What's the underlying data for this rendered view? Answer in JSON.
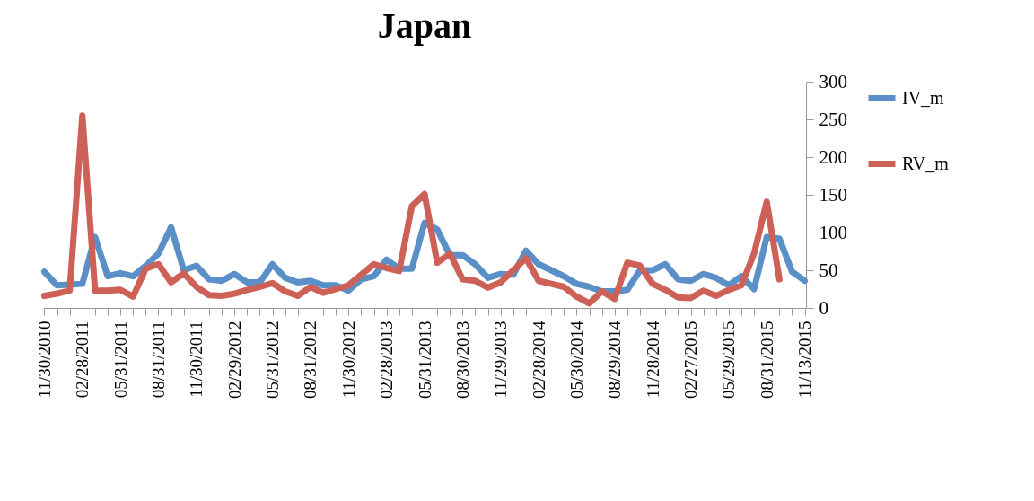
{
  "chart_data": {
    "type": "line",
    "title": "Japan",
    "categories": [
      "11/30/2010",
      null,
      null,
      "02/28/2011",
      null,
      null,
      "05/31/2011",
      null,
      null,
      "08/31/2011",
      null,
      null,
      "11/30/2011",
      null,
      null,
      "02/29/2012",
      null,
      null,
      "05/31/2012",
      null,
      null,
      "08/31/2012",
      null,
      null,
      "11/30/2012",
      null,
      null,
      "02/28/2013",
      null,
      null,
      "05/31/2013",
      null,
      null,
      "08/30/2013",
      null,
      null,
      "11/29/2013",
      null,
      null,
      "02/28/2014",
      null,
      null,
      "05/30/2014",
      null,
      null,
      "08/29/2014",
      null,
      null,
      "11/28/2014",
      null,
      null,
      "02/27/2015",
      null,
      null,
      "05/29/2015",
      null,
      null,
      "08/31/2015",
      null,
      null,
      "11/13/2015"
    ],
    "series": [
      {
        "name": "IV_m",
        "color": "#5b8fc7",
        "values": [
          48,
          30,
          31,
          32,
          94,
          42,
          46,
          42,
          56,
          72,
          107,
          50,
          56,
          38,
          36,
          45,
          34,
          34,
          58,
          40,
          34,
          36,
          30,
          30,
          23,
          38,
          42,
          64,
          52,
          52,
          113,
          104,
          70,
          70,
          58,
          40,
          45,
          44,
          76,
          58,
          50,
          42,
          32,
          28,
          22,
          22,
          24,
          50,
          50,
          58,
          38,
          36,
          45,
          40,
          30,
          42,
          25,
          94,
          92,
          48,
          36
        ]
      },
      {
        "name": "RV_m",
        "color": "#cd6158",
        "values": [
          16,
          19,
          23,
          255,
          23,
          23,
          24,
          15,
          52,
          58,
          34,
          46,
          28,
          17,
          16,
          19,
          24,
          28,
          33,
          22,
          16,
          28,
          20,
          25,
          30,
          44,
          58,
          53,
          49,
          135,
          151,
          60,
          72,
          38,
          36,
          27,
          34,
          50,
          66,
          36,
          32,
          28,
          15,
          6,
          22,
          12,
          60,
          56,
          32,
          24,
          14,
          13,
          23,
          16,
          24,
          30,
          72,
          141,
          38,
          null,
          null
        ]
      }
    ],
    "ylim": [
      0,
      300
    ],
    "yticks": [
      0,
      50,
      100,
      150,
      200,
      250,
      300
    ],
    "grid": false,
    "legend": "right",
    "marker": "none",
    "line_style": "solid"
  }
}
